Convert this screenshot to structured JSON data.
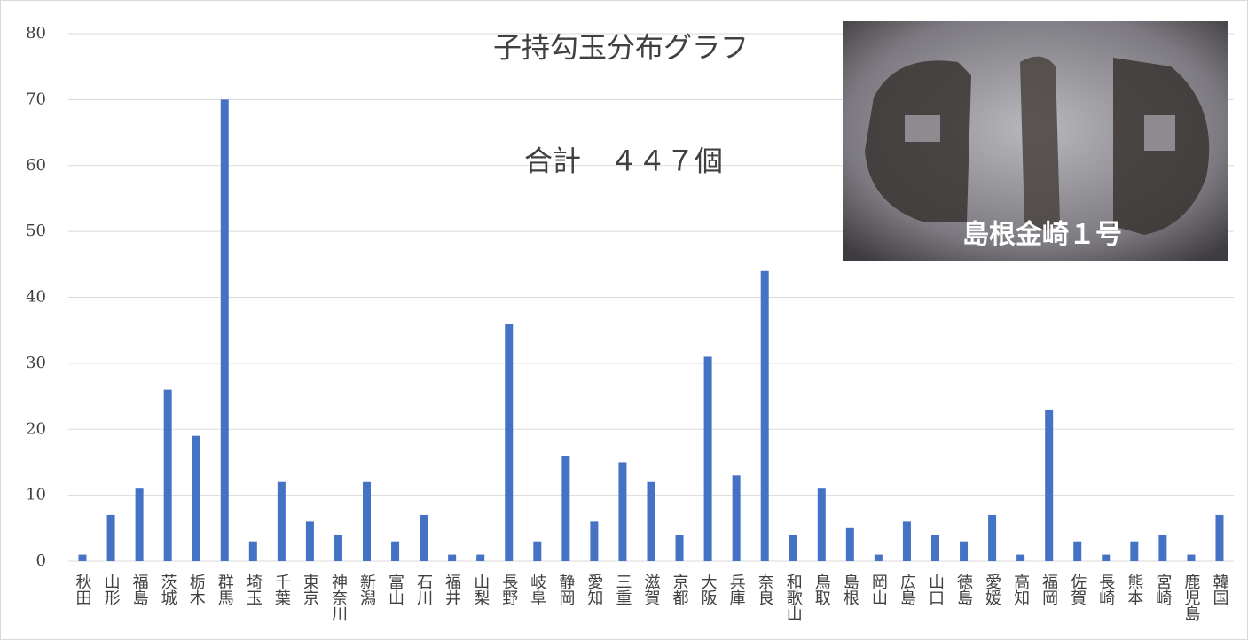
{
  "chart_data": {
    "type": "bar",
    "title": "子持勾玉分布グラフ",
    "annotation": "合計　４４７個",
    "image_caption": "島根金崎１号",
    "categories": [
      "秋田",
      "山形",
      "福島",
      "茨城",
      "栃木",
      "群馬",
      "埼玉",
      "千葉",
      "東京",
      "神奈川",
      "新潟",
      "富山",
      "石川",
      "福井",
      "山梨",
      "長野",
      "岐阜",
      "静岡",
      "愛知",
      "三重",
      "滋賀",
      "京都",
      "大阪",
      "兵庫",
      "奈良",
      "和歌山",
      "鳥取",
      "島根",
      "岡山",
      "広島",
      "山口",
      "徳島",
      "愛媛",
      "高知",
      "福岡",
      "佐賀",
      "長崎",
      "熊本",
      "宮崎",
      "鹿児島",
      "韓国"
    ],
    "values": [
      1,
      7,
      11,
      26,
      19,
      70,
      3,
      12,
      6,
      4,
      12,
      3,
      7,
      1,
      1,
      36,
      3,
      16,
      6,
      15,
      12,
      4,
      31,
      13,
      44,
      4,
      11,
      5,
      1,
      6,
      4,
      3,
      7,
      1,
      23,
      3,
      1,
      3,
      4,
      1,
      7
    ],
    "color": "#4472c4",
    "ylim": [
      0,
      80
    ],
    "yticks": [
      0,
      10,
      20,
      30,
      40,
      50,
      60,
      70,
      80
    ],
    "grid": true
  }
}
